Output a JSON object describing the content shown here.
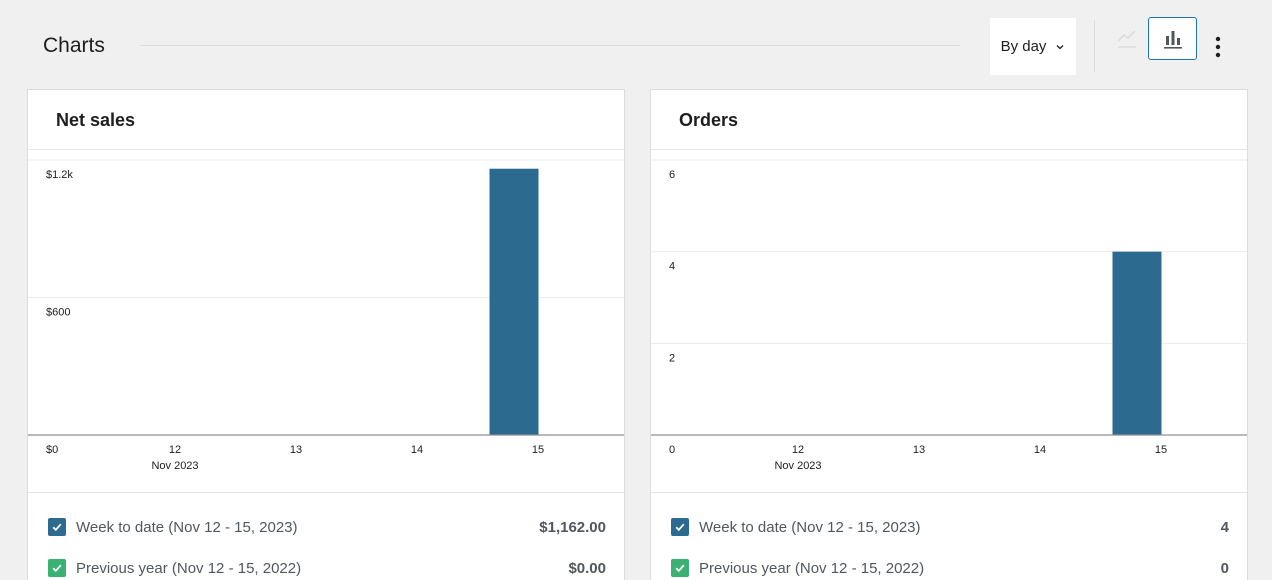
{
  "header": {
    "title": "Charts",
    "interval_label": "By day",
    "icons": {
      "line": "line-chart-icon",
      "bar": "bar-chart-icon",
      "more": "more-vertical-icon"
    }
  },
  "colors": {
    "bar": "#2d6a8f",
    "accent": "#2271b1",
    "check_current": "#2d6a8f",
    "check_previous": "#3bb273"
  },
  "cards": [
    {
      "title": "Net sales",
      "legend": [
        {
          "label": "Week to date (Nov 12 - 15, 2023)",
          "value": "$1,162.00"
        },
        {
          "label": "Previous year (Nov 12 - 15, 2022)",
          "value": "$0.00"
        }
      ]
    },
    {
      "title": "Orders",
      "legend": [
        {
          "label": "Week to date (Nov 12 - 15, 2023)",
          "value": "4"
        },
        {
          "label": "Previous year (Nov 12 - 15, 2022)",
          "value": "0"
        }
      ]
    }
  ],
  "chart_data": [
    {
      "type": "bar",
      "title": "Net sales",
      "categories": [
        "12",
        "13",
        "14",
        "15"
      ],
      "x_sublabel": "Nov 2023",
      "series": [
        {
          "name": "Week to date (Nov 12 - 15, 2023)",
          "values": [
            0,
            0,
            0,
            1162
          ]
        }
      ],
      "y_ticks": [
        0,
        600,
        1200
      ],
      "y_tick_labels": [
        "$0",
        "$600",
        "$1.2k"
      ],
      "ylim": [
        0,
        1200
      ],
      "grid": true
    },
    {
      "type": "bar",
      "title": "Orders",
      "categories": [
        "12",
        "13",
        "14",
        "15"
      ],
      "x_sublabel": "Nov 2023",
      "series": [
        {
          "name": "Week to date (Nov 12 - 15, 2023)",
          "values": [
            0,
            0,
            0,
            4
          ]
        }
      ],
      "y_ticks": [
        0,
        2,
        4,
        6
      ],
      "y_tick_labels": [
        "0",
        "2",
        "4",
        "6"
      ],
      "ylim": [
        0,
        6
      ],
      "grid": true
    }
  ]
}
